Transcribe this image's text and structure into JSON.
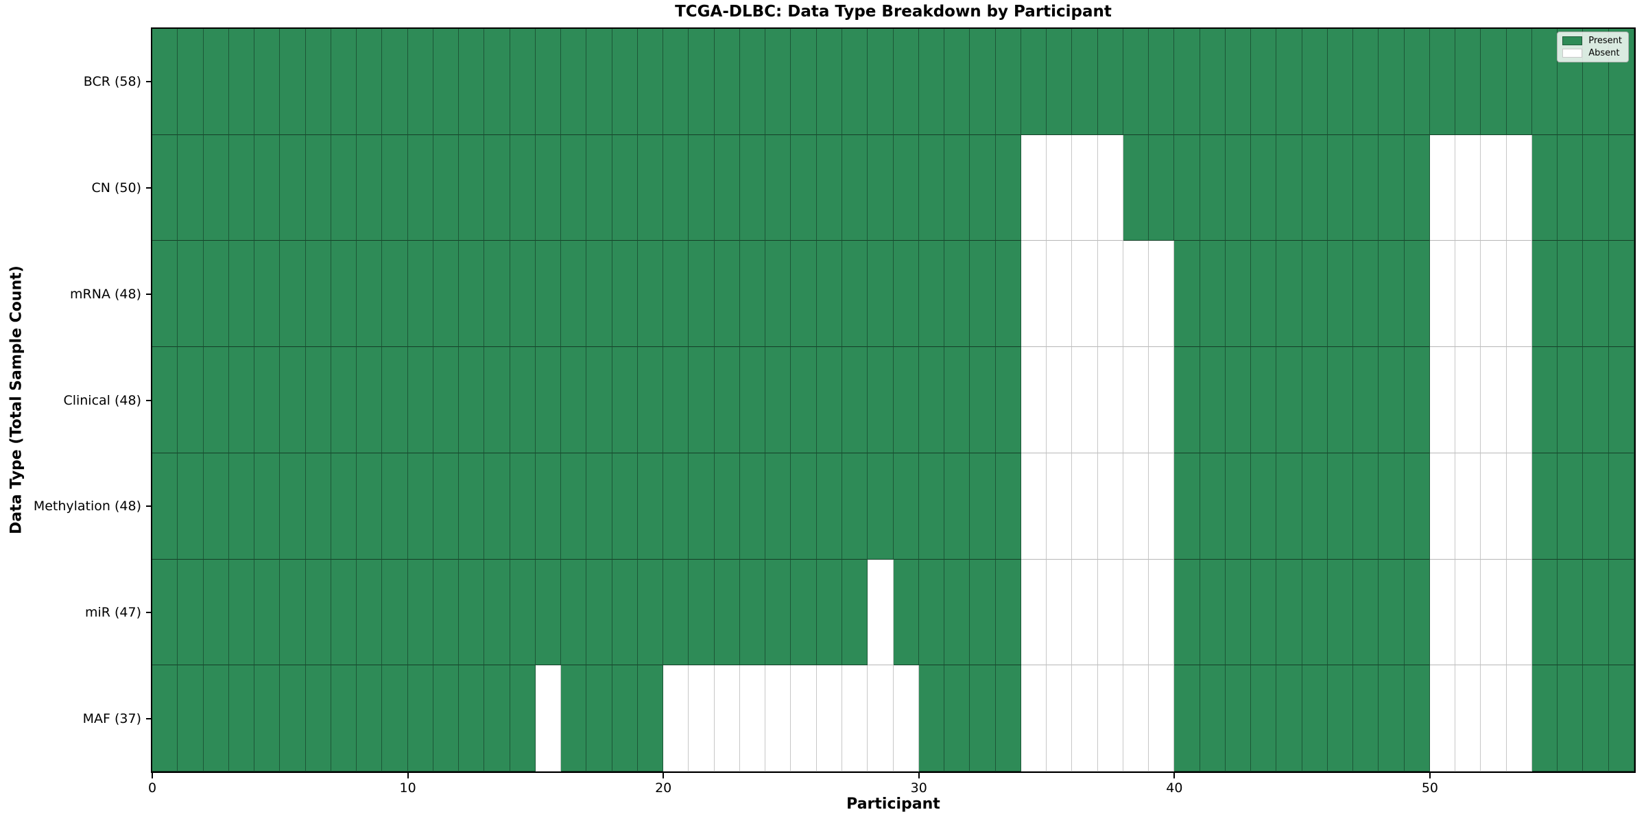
{
  "title": "TCGA-DLBC: Data Type Breakdown by Participant",
  "xlabel": "Participant",
  "ylabel": "Data Type (Total Sample Count)",
  "legend": {
    "present_label": "Present",
    "absent_label": "Absent"
  },
  "colors": {
    "present": "#2e8b57",
    "absent": "#ffffff"
  },
  "chart_data": {
    "type": "heatmap",
    "title": "TCGA-DLBC: Data Type Breakdown by Participant",
    "xlabel": "Participant",
    "ylabel": "Data Type (Total Sample Count)",
    "n_participants": 58,
    "x_range": [
      0,
      58
    ],
    "x_ticks": [
      0,
      10,
      20,
      30,
      40,
      50
    ],
    "legend_position": "upper right",
    "grid": true,
    "value_legend": {
      "1": "Present",
      "0": "Absent"
    },
    "rows": [
      {
        "label": "BCR (58)",
        "data_type": "BCR",
        "total_samples": 58,
        "absent_participants": []
      },
      {
        "label": "CN (50)",
        "data_type": "CN",
        "total_samples": 50,
        "absent_participants": [
          34,
          35,
          36,
          37,
          50,
          51,
          52,
          53
        ]
      },
      {
        "label": "mRNA (48)",
        "data_type": "mRNA",
        "total_samples": 48,
        "absent_participants": [
          34,
          35,
          36,
          37,
          38,
          39,
          50,
          51,
          52,
          53
        ]
      },
      {
        "label": "Clinical (48)",
        "data_type": "Clinical",
        "total_samples": 48,
        "absent_participants": [
          34,
          35,
          36,
          37,
          38,
          39,
          50,
          51,
          52,
          53
        ]
      },
      {
        "label": "Methylation (48)",
        "data_type": "Methylation",
        "total_samples": 48,
        "absent_participants": [
          34,
          35,
          36,
          37,
          38,
          39,
          50,
          51,
          52,
          53
        ]
      },
      {
        "label": "miR (47)",
        "data_type": "miR",
        "total_samples": 47,
        "absent_participants": [
          28,
          34,
          35,
          36,
          37,
          38,
          39,
          50,
          51,
          52,
          53
        ]
      },
      {
        "label": "MAF (37)",
        "data_type": "MAF",
        "total_samples": 37,
        "absent_participants": [
          15,
          20,
          21,
          22,
          23,
          24,
          25,
          26,
          27,
          28,
          29,
          34,
          35,
          36,
          37,
          38,
          39,
          50,
          51,
          52,
          53
        ]
      }
    ]
  }
}
